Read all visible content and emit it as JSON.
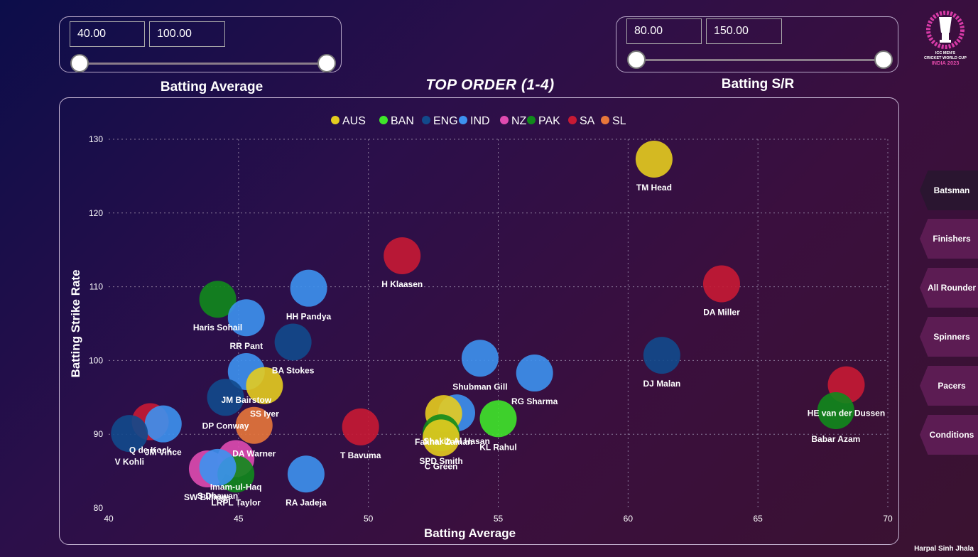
{
  "title": "TOP ORDER (1-4)",
  "logo": {
    "line1": "ICC MEN'S",
    "line2": "CRICKET WORLD CUP",
    "line3": "INDIA 2023"
  },
  "slicers": {
    "avg": {
      "min": "40.00",
      "max": "100.00",
      "label": "Batting Average",
      "low_fraction": 0.0,
      "high_fraction": 1.0
    },
    "sr": {
      "min": "80.00",
      "max": "150.00",
      "label": "Batting S/R",
      "low_fraction": 0.0,
      "high_fraction": 1.0
    }
  },
  "nav": {
    "items": [
      {
        "label": "Batsman",
        "active": true
      },
      {
        "label": "Finishers",
        "active": false
      },
      {
        "label": "All Rounder",
        "active": false
      },
      {
        "label": "Spinners",
        "active": false
      },
      {
        "label": "Pacers",
        "active": false
      },
      {
        "label": "Conditions",
        "active": false
      }
    ]
  },
  "author": "Harpal Sinh Jhala",
  "chart_data": {
    "type": "scatter",
    "xlabel": "Batting Average",
    "ylabel": "Batting Strike Rate",
    "xlim": [
      40,
      70
    ],
    "ylim": [
      80,
      130
    ],
    "xticks": [
      40,
      45,
      50,
      55,
      60,
      65,
      70
    ],
    "yticks": [
      80,
      90,
      100,
      110,
      120,
      130
    ],
    "grid": true,
    "legend_position": "top-center",
    "legend": [
      {
        "name": "AUS",
        "color": "#e5cc1f"
      },
      {
        "name": "BAN",
        "color": "#3fe62a"
      },
      {
        "name": "ENG",
        "color": "#124a8c"
      },
      {
        "name": "IND",
        "color": "#3d92f0"
      },
      {
        "name": "NZ",
        "color": "#df4bb0"
      },
      {
        "name": "PAK",
        "color": "#118a1c"
      },
      {
        "name": "SA",
        "color": "#c81a34"
      },
      {
        "name": "SL",
        "color": "#e8773a"
      }
    ],
    "points": [
      {
        "name": "TM Head",
        "team": "AUS",
        "x": 61.0,
        "y": 127.3
      },
      {
        "name": "H Klaasen",
        "team": "SA",
        "x": 51.3,
        "y": 114.2
      },
      {
        "name": "DA Miller",
        "team": "SA",
        "x": 63.6,
        "y": 110.4
      },
      {
        "name": "HH Pandya",
        "team": "IND",
        "x": 47.7,
        "y": 109.8
      },
      {
        "name": "Haris Sohail",
        "team": "PAK",
        "x": 44.2,
        "y": 108.3
      },
      {
        "name": "RR Pant",
        "team": "IND",
        "x": 45.3,
        "y": 105.8
      },
      {
        "name": "BA Stokes",
        "team": "ENG",
        "x": 47.1,
        "y": 102.5
      },
      {
        "name": "Shubman Gill",
        "team": "IND",
        "x": 54.3,
        "y": 100.3
      },
      {
        "name": "DJ Malan",
        "team": "ENG",
        "x": 61.3,
        "y": 100.7
      },
      {
        "name": "RG Sharma",
        "team": "IND",
        "x": 56.4,
        "y": 98.3
      },
      {
        "name": "JM Bairstow",
        "team": "IND",
        "x": 45.3,
        "y": 98.5
      },
      {
        "name": "HE van der Dussen",
        "team": "SA",
        "x": 68.4,
        "y": 96.7
      },
      {
        "name": "SS Iyer",
        "team": "AUS",
        "x": 46.0,
        "y": 96.6
      },
      {
        "name": "Babar Azam",
        "team": "PAK",
        "x": 68.0,
        "y": 93.2
      },
      {
        "name": "Shakib Al Hasan",
        "team": "IND",
        "x": 53.4,
        "y": 92.9
      },
      {
        "name": "Fakhar Zaman",
        "team": "AUS",
        "x": 52.9,
        "y": 92.8
      },
      {
        "name": "KL Rahul",
        "team": "BAN",
        "x": 55.0,
        "y": 92.1
      },
      {
        "name": "Q de Kock",
        "team": "SA",
        "x": 41.6,
        "y": 91.7
      },
      {
        "name": "DA Warner",
        "team": "SL",
        "x": 45.6,
        "y": 91.2
      },
      {
        "name": "SPD Smith",
        "team": "PAK",
        "x": 52.8,
        "y": 90.2
      },
      {
        "name": "T Bavuma",
        "team": "SA",
        "x": 49.7,
        "y": 91.0
      },
      {
        "name": "C Green",
        "team": "AUS",
        "x": 52.8,
        "y": 89.5
      },
      {
        "name": "JM Vince",
        "team": "IND",
        "x": 42.1,
        "y": 91.4
      },
      {
        "name": "V Kohli",
        "team": "ENG",
        "x": 40.8,
        "y": 90.1
      },
      {
        "name": "DP Conway",
        "team": "ENG",
        "x": 44.5,
        "y": 95.0
      },
      {
        "name": "Imam-ul-Haq",
        "team": "NZ",
        "x": 44.9,
        "y": 86.7
      },
      {
        "name": "SW Billings",
        "team": "NZ",
        "x": 43.8,
        "y": 85.3
      },
      {
        "name": "LRPL Taylor",
        "team": "PAK",
        "x": 44.9,
        "y": 84.6
      },
      {
        "name": "S Dhawan",
        "team": "IND",
        "x": 44.2,
        "y": 85.5
      },
      {
        "name": "RA Jadeja",
        "team": "IND",
        "x": 47.6,
        "y": 84.6
      }
    ]
  }
}
